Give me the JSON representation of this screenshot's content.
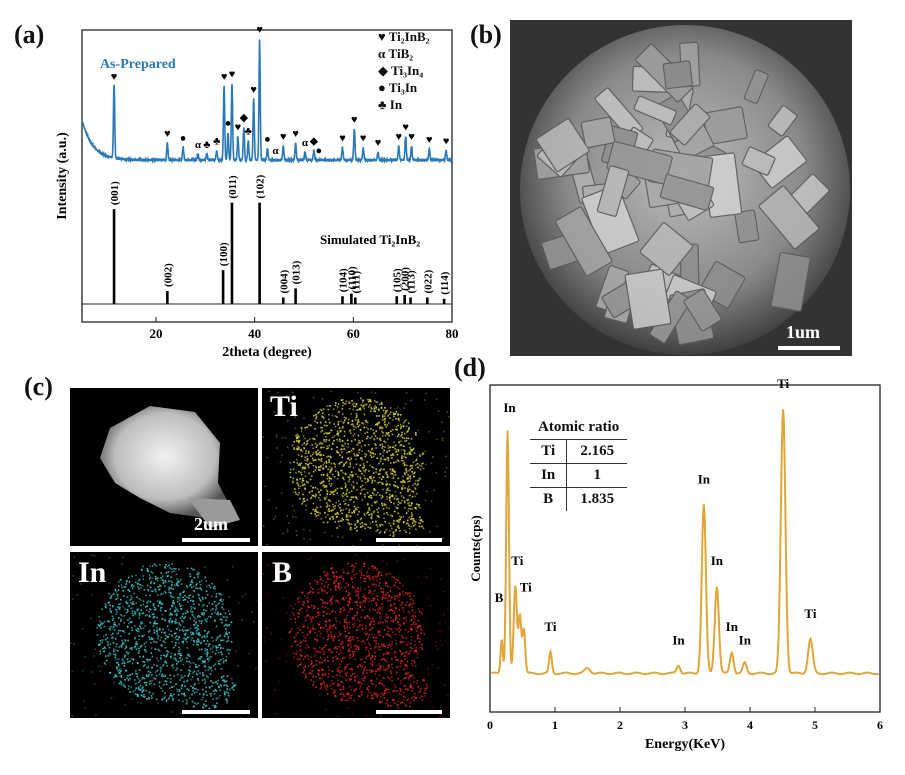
{
  "panels": {
    "a": "(a)",
    "b": "(b)",
    "c": "(c)",
    "d": "(d)"
  },
  "colors": {
    "xrd_exp": "#2a78b5",
    "eds": "#e0a63a",
    "ti_map": "#d7d23a",
    "in_map": "#3fc6c8",
    "b_map": "#d9262a"
  },
  "chart_data": [
    {
      "type": "line",
      "panel": "a",
      "xlabel": "2theta (degree)",
      "ylabel": "Intensity (a.u.)",
      "xlim": [
        5,
        80
      ],
      "xticks": [
        20,
        40,
        60,
        80
      ],
      "series": [
        {
          "name": "As-Prepared",
          "peaks": [
            {
              "x": 11.5,
              "h": 0.95
            },
            {
              "x": 22.3,
              "h": 0.22
            },
            {
              "x": 25.5,
              "h": 0.16
            },
            {
              "x": 28.5,
              "h": 0.08
            },
            {
              "x": 30.3,
              "h": 0.08
            },
            {
              "x": 32.3,
              "h": 0.12
            },
            {
              "x": 33.8,
              "h": 0.95
            },
            {
              "x": 34.6,
              "h": 0.35
            },
            {
              "x": 35.4,
              "h": 0.98
            },
            {
              "x": 36.6,
              "h": 0.3
            },
            {
              "x": 37.8,
              "h": 0.42
            },
            {
              "x": 38.7,
              "h": 0.25
            },
            {
              "x": 39.8,
              "h": 0.78
            },
            {
              "x": 41.0,
              "h": 1.55
            },
            {
              "x": 42.6,
              "h": 0.15
            },
            {
              "x": 45.8,
              "h": 0.18
            },
            {
              "x": 48.3,
              "h": 0.22
            },
            {
              "x": 50.2,
              "h": 0.1
            },
            {
              "x": 52.0,
              "h": 0.12
            },
            {
              "x": 57.8,
              "h": 0.16
            },
            {
              "x": 60.2,
              "h": 0.4
            },
            {
              "x": 62.0,
              "h": 0.16
            },
            {
              "x": 65.0,
              "h": 0.1
            },
            {
              "x": 69.2,
              "h": 0.18
            },
            {
              "x": 70.6,
              "h": 0.3
            },
            {
              "x": 71.8,
              "h": 0.18
            },
            {
              "x": 75.4,
              "h": 0.14
            },
            {
              "x": 78.8,
              "h": 0.12
            }
          ]
        },
        {
          "name": "Simulated Ti2InB2",
          "peaks": [
            {
              "x": 11.5,
              "h": 0.73,
              "label": "(001)"
            },
            {
              "x": 22.3,
              "h": 0.1,
              "label": "(002)"
            },
            {
              "x": 33.6,
              "h": 0.26,
              "label": "(100)"
            },
            {
              "x": 35.4,
              "h": 0.78,
              "label": "(011)"
            },
            {
              "x": 41.0,
              "h": 0.78,
              "label": "(102)"
            },
            {
              "x": 45.8,
              "h": 0.05,
              "label": "(004)"
            },
            {
              "x": 48.3,
              "h": 0.12,
              "label": "(013)"
            },
            {
              "x": 57.8,
              "h": 0.06,
              "label": "(104)"
            },
            {
              "x": 59.6,
              "h": 0.08,
              "label": "(110)"
            },
            {
              "x": 60.4,
              "h": 0.05,
              "label": "(111)"
            },
            {
              "x": 68.8,
              "h": 0.06,
              "label": "(105)"
            },
            {
              "x": 70.4,
              "h": 0.07,
              "label": "(200)"
            },
            {
              "x": 71.6,
              "h": 0.05,
              "label": "(113)"
            },
            {
              "x": 75.0,
              "h": 0.05,
              "label": "(022)"
            },
            {
              "x": 78.4,
              "h": 0.04,
              "label": "(114)"
            }
          ]
        }
      ],
      "legend": [
        {
          "symbol": "♥",
          "text": "Ti₂InB₂"
        },
        {
          "symbol": "α",
          "text": "TiB₂"
        },
        {
          "symbol": "◆",
          "text": "Ti₃In₄"
        },
        {
          "symbol": "●",
          "text": "Ti₃In"
        },
        {
          "symbol": "♣",
          "text": "In"
        }
      ],
      "legend_position": "top-right",
      "exp_label": "As-Prepared",
      "sim_label": "Simulated Ti₂InB₂",
      "markers": [
        {
          "x": 11.5,
          "s": "♥"
        },
        {
          "x": 22.3,
          "s": "♥"
        },
        {
          "x": 25.5,
          "s": "●"
        },
        {
          "x": 28.5,
          "s": "α"
        },
        {
          "x": 30.3,
          "s": "♣"
        },
        {
          "x": 32.3,
          "s": "♣"
        },
        {
          "x": 33.8,
          "s": "♥"
        },
        {
          "x": 35.4,
          "s": "♥"
        },
        {
          "x": 34.6,
          "s": "●"
        },
        {
          "x": 36.6,
          "s": "♥"
        },
        {
          "x": 37.8,
          "s": "◆"
        },
        {
          "x": 38.7,
          "s": "♣"
        },
        {
          "x": 39.8,
          "s": "♥"
        },
        {
          "x": 41.0,
          "s": "♥"
        },
        {
          "x": 42.6,
          "s": "●"
        },
        {
          "x": 44.2,
          "s": "α"
        },
        {
          "x": 45.8,
          "s": "♥"
        },
        {
          "x": 48.3,
          "s": "♥"
        },
        {
          "x": 50.2,
          "s": "α"
        },
        {
          "x": 52.0,
          "s": "◆"
        },
        {
          "x": 53.0,
          "s": "●"
        },
        {
          "x": 57.8,
          "s": "♥"
        },
        {
          "x": 60.2,
          "s": "♥"
        },
        {
          "x": 62.0,
          "s": "♥"
        },
        {
          "x": 65.0,
          "s": "♥"
        },
        {
          "x": 69.2,
          "s": "♥"
        },
        {
          "x": 70.6,
          "s": "♥"
        },
        {
          "x": 71.8,
          "s": "♥"
        },
        {
          "x": 75.4,
          "s": "♥"
        },
        {
          "x": 78.8,
          "s": "♥"
        }
      ]
    },
    {
      "type": "line",
      "panel": "d",
      "xlabel": "Energy(KeV)",
      "ylabel": "Counts(cps)",
      "xlim": [
        0,
        6
      ],
      "xticks": [
        0,
        1,
        2,
        3,
        4,
        5,
        6
      ],
      "series": [
        {
          "name": "EDS",
          "peaks": [
            {
              "x": 0.18,
              "h": 0.13,
              "w": 0.025
            },
            {
              "x": 0.27,
              "h": 0.92,
              "w": 0.03
            },
            {
              "x": 0.39,
              "h": 0.33,
              "w": 0.035
            },
            {
              "x": 0.46,
              "h": 0.22,
              "w": 0.03
            },
            {
              "x": 0.52,
              "h": 0.17,
              "w": 0.03
            },
            {
              "x": 0.93,
              "h": 0.08,
              "w": 0.03
            },
            {
              "x": 1.5,
              "h": 0.02,
              "w": 0.06
            },
            {
              "x": 2.9,
              "h": 0.03,
              "w": 0.04
            },
            {
              "x": 3.29,
              "h": 0.64,
              "w": 0.045
            },
            {
              "x": 3.49,
              "h": 0.33,
              "w": 0.045
            },
            {
              "x": 3.72,
              "h": 0.08,
              "w": 0.04
            },
            {
              "x": 3.92,
              "h": 0.04,
              "w": 0.04
            },
            {
              "x": 4.51,
              "h": 1.0,
              "w": 0.05
            },
            {
              "x": 4.93,
              "h": 0.13,
              "w": 0.05
            }
          ],
          "peak_labels": [
            {
              "x": 0.14,
              "h": 0.28,
              "text": "B"
            },
            {
              "x": 0.3,
              "h": 1.0,
              "text": "In"
            },
            {
              "x": 0.42,
              "h": 0.42,
              "text": "Ti"
            },
            {
              "x": 0.55,
              "h": 0.32,
              "text": "Ti"
            },
            {
              "x": 0.93,
              "h": 0.17,
              "text": "Ti"
            },
            {
              "x": 2.9,
              "h": 0.12,
              "text": "In"
            },
            {
              "x": 3.29,
              "h": 0.73,
              "text": "In"
            },
            {
              "x": 3.49,
              "h": 0.42,
              "text": "In"
            },
            {
              "x": 3.72,
              "h": 0.17,
              "text": "In"
            },
            {
              "x": 3.92,
              "h": 0.12,
              "text": "In"
            },
            {
              "x": 4.51,
              "h": 1.09,
              "text": "Ti"
            },
            {
              "x": 4.93,
              "h": 0.22,
              "text": "Ti"
            }
          ]
        }
      ]
    }
  ],
  "atomic_table": {
    "header": "Atomic ratio",
    "rows": [
      {
        "el": "Ti",
        "val": "2.165"
      },
      {
        "el": "In",
        "val": "1"
      },
      {
        "el": "B",
        "val": "1.835"
      }
    ]
  },
  "sem": {
    "scale": "1um"
  },
  "maps": {
    "haadf_scale": "2um",
    "ti": "Ti",
    "in": "In",
    "b": "B"
  }
}
